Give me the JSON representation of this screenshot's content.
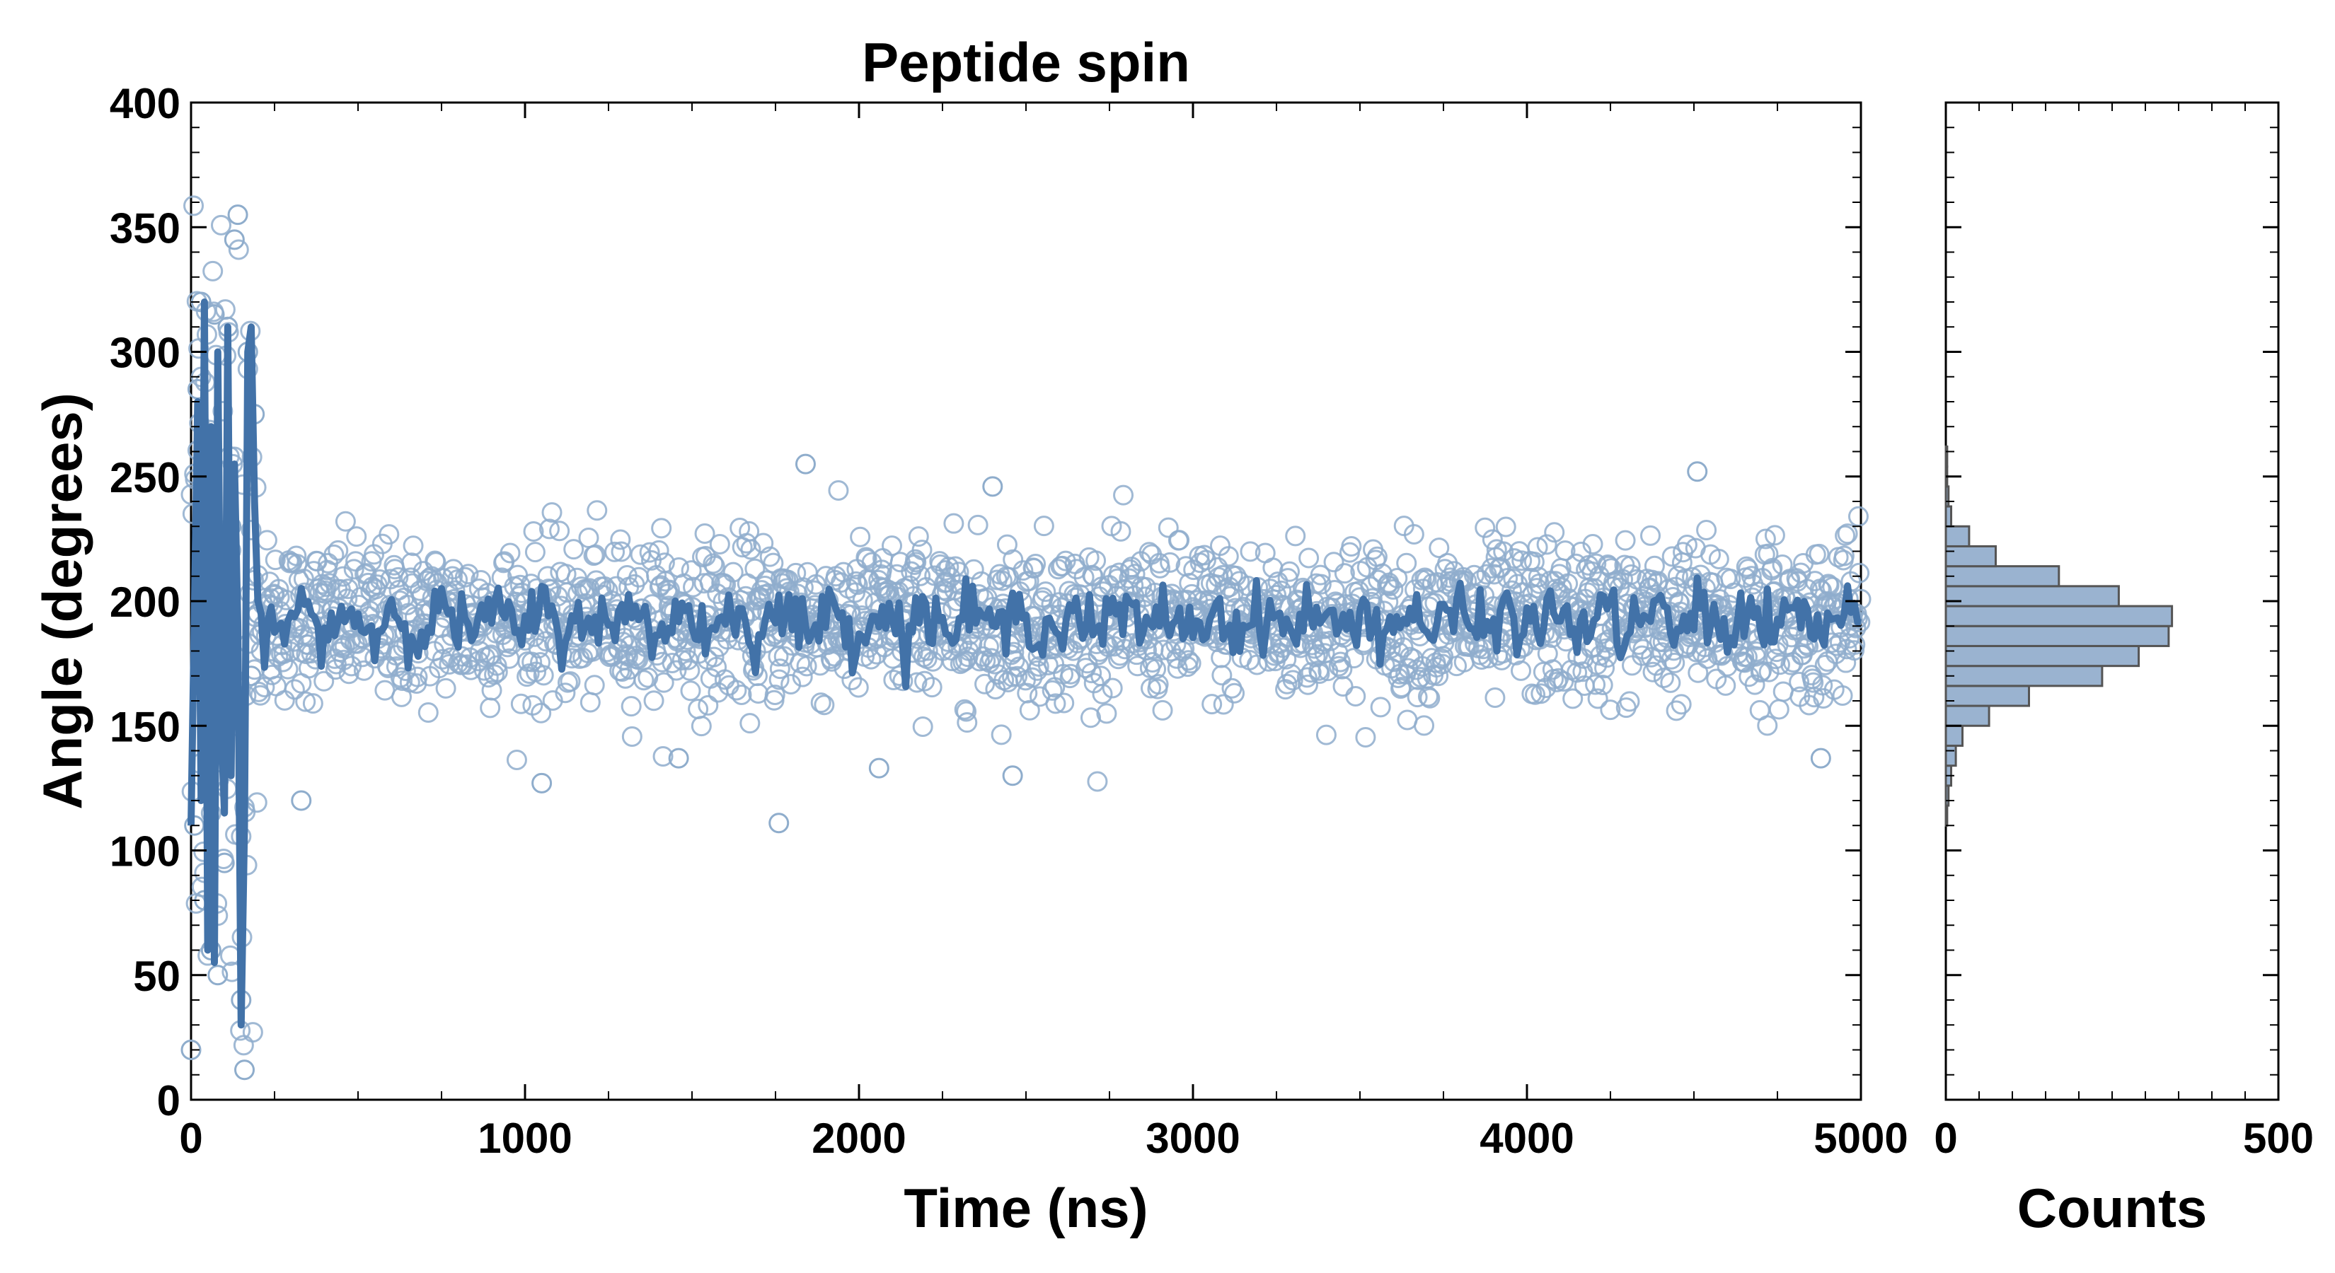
{
  "chart_data": [
    {
      "type": "scatter",
      "title": "Peptide spin",
      "xlabel": "Time (ns)",
      "ylabel": "Angle (degrees)",
      "xlim": [
        0,
        5000
      ],
      "ylim": [
        0,
        400
      ],
      "xticks": [
        "0",
        "1000",
        "2000",
        "3000",
        "4000",
        "5000"
      ],
      "yticks": [
        "0",
        "50",
        "100",
        "150",
        "200",
        "250",
        "300",
        "350",
        "400"
      ],
      "grid": false,
      "colors": {
        "points": "#8fadcc",
        "line": "#4272a8"
      },
      "series": [
        {
          "kind": "points",
          "description_of_distribution": "about 2000 raw samples",
          "x": [
            0,
            10,
            20,
            30,
            40,
            50,
            60,
            70,
            80,
            90,
            100,
            110,
            120,
            130,
            140,
            150,
            160,
            170,
            180,
            190,
            200,
            330,
            1050,
            1460,
            1760,
            1840,
            2060,
            2460,
            2400,
            4510,
            4880
          ],
          "y": [
            20,
            110,
            285,
            320,
            80,
            230,
            60,
            315,
            50,
            180,
            95,
            310,
            230,
            345,
            355,
            40,
            12,
            300,
            170,
            275,
            195,
            120,
            127,
            137,
            111,
            255,
            133,
            130,
            246,
            252,
            137
          ]
        },
        {
          "kind": "line",
          "x": [
            0,
            20,
            30,
            40,
            50,
            60,
            70,
            80,
            90,
            100,
            110,
            120,
            130,
            140,
            150,
            160,
            170,
            180,
            190,
            200,
            220,
            250,
            300,
            350,
            400,
            500,
            600,
            700,
            800,
            900,
            1000,
            1100,
            1200,
            1300,
            1400,
            1500,
            1600,
            1700,
            1800,
            1900,
            2000,
            2100,
            2200,
            2300,
            2400,
            2500,
            2600,
            2700,
            2800,
            2900,
            3000,
            3100,
            3200,
            3300,
            3400,
            3500,
            3600,
            3700,
            3800,
            3900,
            4000,
            4100,
            4200,
            4300,
            4400,
            4500,
            4600,
            4700,
            4800,
            4850,
            4900,
            4950,
            5000
          ],
          "y": [
            110,
            280,
            120,
            320,
            60,
            270,
            55,
            300,
            150,
            115,
            310,
            130,
            255,
            190,
            30,
            110,
            300,
            310,
            240,
            200,
            205,
            195,
            180,
            190,
            185,
            195,
            190,
            200,
            185,
            195,
            190,
            200,
            185,
            190,
            195,
            185,
            200,
            190,
            185,
            195,
            200,
            185,
            190,
            195,
            190,
            185,
            195,
            190,
            200,
            185,
            195,
            190,
            185,
            200,
            190,
            195,
            185,
            190,
            200,
            190,
            185,
            195,
            190,
            200,
            185,
            195,
            190,
            185,
            195,
            170,
            190,
            195,
            200
          ]
        }
      ]
    },
    {
      "type": "bar",
      "orientation": "horizontal",
      "xlabel": "Counts",
      "ylabel": "",
      "xlim": [
        0,
        500
      ],
      "ylim": [
        0,
        400
      ],
      "xticks": [
        "0",
        "500"
      ],
      "colors": {
        "bar": "#9ab3d0",
        "edge": "#555555"
      },
      "bins_lower": [
        110,
        118,
        126,
        134,
        142,
        150,
        158,
        166,
        174,
        182,
        190,
        198,
        206,
        214,
        222,
        230,
        238,
        246,
        254
      ],
      "bins_width": 8,
      "counts": [
        2,
        4,
        8,
        15,
        25,
        65,
        125,
        235,
        290,
        335,
        340,
        260,
        170,
        75,
        35,
        8,
        4,
        2,
        2
      ]
    }
  ]
}
